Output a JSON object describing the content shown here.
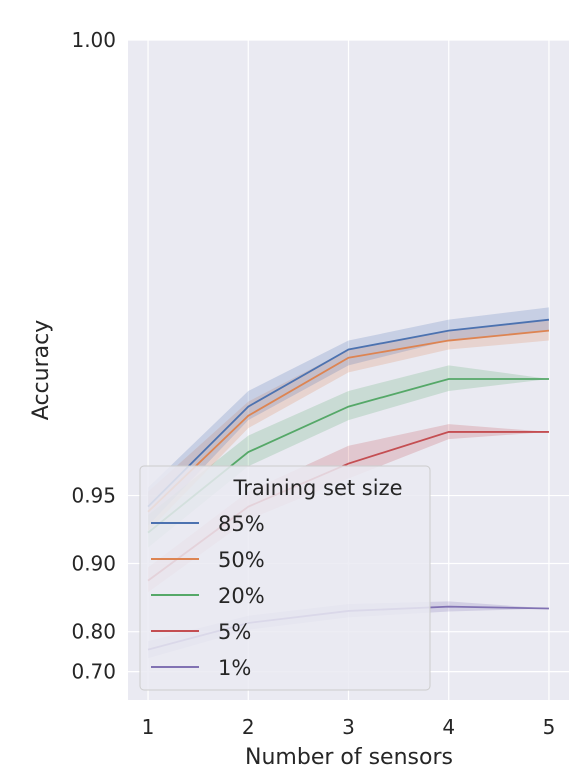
{
  "chart_data": {
    "type": "line",
    "title": "",
    "xlabel": "Number of sensors",
    "ylabel": "Accuracy",
    "x": [
      1,
      2,
      3,
      4,
      5
    ],
    "xlim": [
      0.8,
      5.2
    ],
    "ylim": [
      0.6,
      1.0
    ],
    "yticks": [
      0.7,
      0.8,
      0.9,
      0.95,
      1.0
    ],
    "ytick_labels": [
      "0.70",
      "0.80",
      "0.90",
      "0.95",
      "1.00"
    ],
    "xtick_labels": [
      "1",
      "2",
      "3",
      "4",
      "5"
    ],
    "y_scale": "nonlinear (log of error)",
    "grid": true,
    "legend": {
      "title": "Training set size",
      "placement": "lower-left"
    },
    "series": [
      {
        "name": "85%",
        "color": "#4c72b0",
        "values": [
          0.944,
          0.98,
          0.989,
          0.991,
          0.992
        ],
        "lower": [
          0.932,
          0.977,
          0.987,
          0.99,
          0.991
        ],
        "upper": [
          0.954,
          0.983,
          0.99,
          0.992,
          0.993
        ]
      },
      {
        "name": "50%",
        "color": "#dd8452",
        "values": [
          0.941,
          0.978,
          0.988,
          0.99,
          0.991
        ],
        "lower": [
          0.928,
          0.975,
          0.986,
          0.989,
          0.99
        ],
        "upper": [
          0.952,
          0.981,
          0.989,
          0.991,
          0.992
        ]
      },
      {
        "name": "20%",
        "color": "#55a868",
        "values": [
          0.927,
          0.968,
          0.98,
          0.985,
          0.985
        ],
        "lower": [
          0.915,
          0.963,
          0.977,
          0.983,
          0.985
        ],
        "upper": [
          0.939,
          0.973,
          0.983,
          0.987,
          0.985
        ]
      },
      {
        "name": "5%",
        "color": "#c44e52",
        "values": [
          0.881,
          0.944,
          0.964,
          0.974,
          0.974
        ],
        "lower": [
          0.866,
          0.936,
          0.958,
          0.972,
          0.974
        ],
        "upper": [
          0.896,
          0.952,
          0.97,
          0.976,
          0.974
        ]
      },
      {
        "name": "1%",
        "color": "#8172b3",
        "values": [
          0.76,
          0.817,
          0.838,
          0.845,
          0.842
        ],
        "lower": [
          0.738,
          0.804,
          0.827,
          0.837,
          0.842
        ],
        "upper": [
          0.78,
          0.83,
          0.849,
          0.853,
          0.842
        ]
      }
    ]
  }
}
